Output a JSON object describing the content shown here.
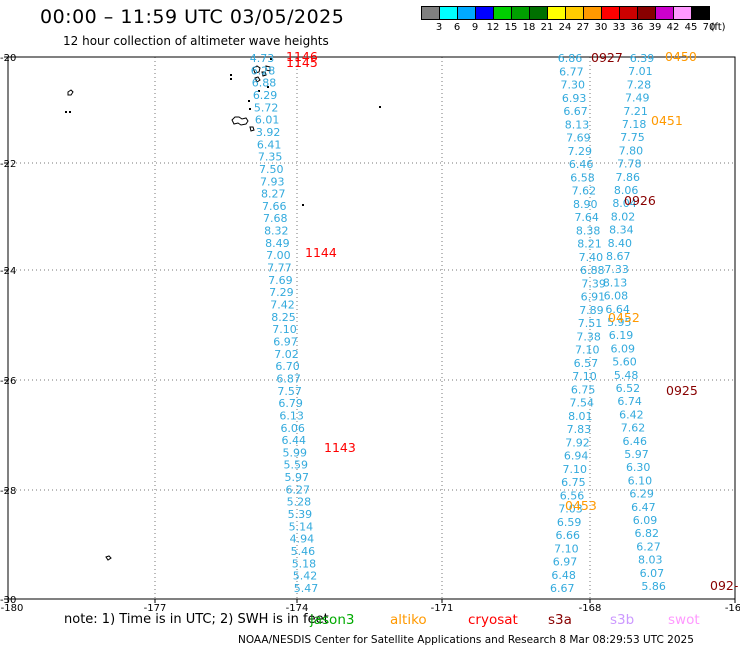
{
  "header": {
    "title": "00:00 – 11:59 UTC 03/05/2025",
    "subtitle": "12 hour collection of altimeter wave heights"
  },
  "colorbar": {
    "unit_label": "(ft)",
    "bins": [
      {
        "label": "3",
        "color": "#808080"
      },
      {
        "label": "6",
        "color": "#00ffff"
      },
      {
        "label": "9",
        "color": "#00aaff"
      },
      {
        "label": "12",
        "color": "#0000ff"
      },
      {
        "label": "15",
        "color": "#00d000"
      },
      {
        "label": "18",
        "color": "#00a000"
      },
      {
        "label": "21",
        "color": "#007000"
      },
      {
        "label": "24",
        "color": "#ffff00"
      },
      {
        "label": "27",
        "color": "#ffcc00"
      },
      {
        "label": "30",
        "color": "#ff9900"
      },
      {
        "label": "33",
        "color": "#ff0000"
      },
      {
        "label": "36",
        "color": "#cc0000"
      },
      {
        "label": "39",
        "color": "#880000"
      },
      {
        "label": "42",
        "color": "#cc00cc"
      },
      {
        "label": "45",
        "color": "#ff99ff"
      },
      {
        "label": "70",
        "color": "#000000"
      }
    ]
  },
  "map": {
    "lon_ticks": [
      "-180",
      "-177",
      "-174",
      "-171",
      "-168",
      "-16"
    ],
    "lat_ticks": [
      "-20",
      "-22",
      "-24",
      "-26",
      "-28",
      "-30"
    ],
    "obs_color": "#33aadd",
    "tracks": [
      {
        "values": [
          "4.73",
          "6.28",
          "6.88",
          "6.29",
          "5.72",
          "6.01",
          "3.92",
          "6.41",
          "7.35",
          "7.50",
          "7.93",
          "8.27",
          "7.66",
          "7.68",
          "8.32",
          "8.49",
          "7.00",
          "7.77",
          "7.69",
          "7.29",
          "7.42",
          "8.25",
          "7.10",
          "6.97",
          "7.02",
          "6.70",
          "6.87",
          "7.57",
          "6.79",
          "6.13",
          "6.06",
          "6.44",
          "5.99",
          "5.59",
          "5.97",
          "6.27",
          "5.28",
          "5.39",
          "5.14",
          "4.94",
          "5.46",
          "5.18",
          "5.42",
          "5.47"
        ],
        "passes": [
          {
            "label": "1146",
            "color": "#ff0000"
          },
          {
            "label": "1145",
            "color": "#ff0000"
          },
          {
            "label": "1144",
            "color": "#ff0000"
          },
          {
            "label": "1143",
            "color": "#ff0000"
          }
        ]
      },
      {
        "values": [
          "6.86",
          "6.77",
          "7.30",
          "6.93",
          "6.67",
          "8.13",
          "7.69",
          "7.29",
          "6.46",
          "6.58",
          "7.62",
          "8.90",
          "7.64",
          "8.38",
          "8.21",
          "7.40",
          "6.88",
          "7.39",
          "6.91",
          "7.89",
          "7.51",
          "7.38",
          "7.10",
          "6.57",
          "7.10",
          "6.75",
          "7.54",
          "8.01",
          "7.83",
          "7.92",
          "6.94",
          "7.10",
          "6.75",
          "6.56",
          "7.03",
          "6.59",
          "6.66",
          "7.10",
          "6.97",
          "6.48",
          "6.67"
        ],
        "passes": [
          {
            "label": "0927",
            "color": "#880000"
          },
          {
            "label": "0453",
            "color": "#ff9900"
          }
        ]
      },
      {
        "values": [
          "6.39",
          "7.01",
          "7.28",
          "7.49",
          "7.21",
          "7.18",
          "7.75",
          "7.80",
          "7.78",
          "7.86",
          "8.06",
          "8.04",
          "8.02",
          "8.34",
          "8.40",
          "8.67",
          "7.33",
          "8.13",
          "6.08",
          "6.64",
          "5.95",
          "6.19",
          "6.09",
          "5.60",
          "5.48",
          "6.52",
          "6.74",
          "6.42",
          "7.62",
          "6.46",
          "5.97",
          "6.30",
          "6.10",
          "6.29",
          "6.47",
          "6.09",
          "6.82",
          "6.27",
          "8.03",
          "6.07",
          "5.86"
        ],
        "passes": [
          {
            "label": "0450",
            "color": "#ff9900"
          },
          {
            "label": "0451",
            "color": "#ff9900"
          },
          {
            "label": "0926",
            "color": "#880000"
          },
          {
            "label": "0452",
            "color": "#ff9900"
          },
          {
            "label": "0925",
            "color": "#880000"
          },
          {
            "label": "092-",
            "color": "#880000"
          }
        ]
      }
    ]
  },
  "footer": {
    "note": "note:  1) Time is in UTC; 2) SWH is in feet",
    "satellites": [
      {
        "name": "jason3",
        "color": "#00aa00"
      },
      {
        "name": "altiko",
        "color": "#ff9900"
      },
      {
        "name": "cryosat",
        "color": "#ff0000"
      },
      {
        "name": "s3a",
        "color": "#880000"
      },
      {
        "name": "s3b",
        "color": "#cc99ff"
      },
      {
        "name": "swot",
        "color": "#ff99ff"
      }
    ],
    "credit": "NOAA/NESDIS Center for Satellite Applications and Research    8 Mar 08:29:53 UTC 2025"
  }
}
